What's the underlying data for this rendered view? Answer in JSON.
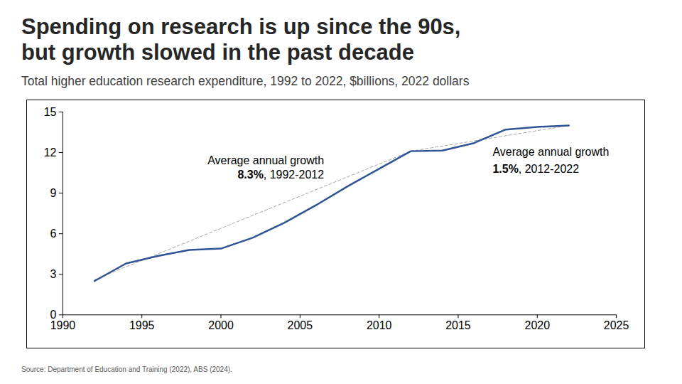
{
  "chart_data": {
    "type": "line",
    "title": "Spending on research is up since the 90s,\nbut growth slowed in the past decade",
    "subtitle": "Total higher education research expenditure, 1992 to 2022, $billions, 2022 dollars",
    "source": "Source: Department of Education and Training (2022), ABS (2024).",
    "x": [
      1992,
      1994,
      1996,
      1998,
      2000,
      2002,
      2004,
      2006,
      2008,
      2010,
      2012,
      2014,
      2016,
      2018,
      2020,
      2022
    ],
    "values": [
      2.5,
      3.8,
      4.35,
      4.8,
      4.9,
      5.7,
      6.8,
      8.1,
      9.5,
      10.8,
      12.1,
      12.15,
      12.7,
      13.7,
      13.9,
      14.0
    ],
    "color": "#2f5496",
    "xlim": [
      1990,
      2025
    ],
    "xticks": [
      1990,
      1995,
      2000,
      2005,
      2010,
      2015,
      2020,
      2025
    ],
    "ylim": [
      0,
      15
    ],
    "yticks": [
      0,
      3,
      6,
      9,
      12,
      15
    ],
    "grid": false,
    "trends": [
      {
        "x": [
          1992,
          2012
        ],
        "values": [
          2.6,
          12.1
        ],
        "color": "#a6a6a6",
        "line_style": "dashed"
      },
      {
        "x": [
          2012,
          2022
        ],
        "values": [
          12.1,
          14.0
        ],
        "color": "#a6a6a6",
        "line_style": "dashed"
      }
    ],
    "annotations": [
      {
        "title": "Average annual growth",
        "bold": "8.3%",
        "text": ", 1992-2012"
      },
      {
        "title": "Average annual growth",
        "bold": "1.5%",
        "text": ", 2012-2022"
      }
    ]
  }
}
